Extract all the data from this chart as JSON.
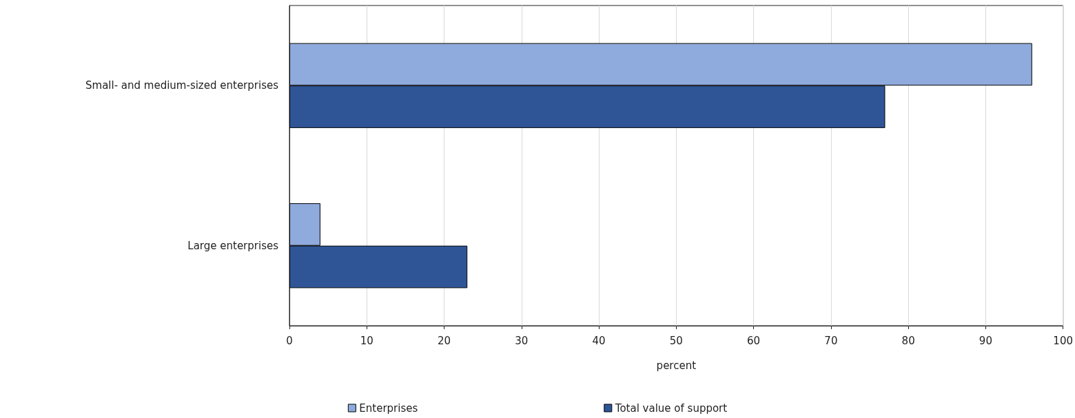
{
  "chart_data": {
    "type": "bar",
    "orientation": "horizontal",
    "categories": [
      "Small- and medium-sized enterprises",
      "Large enterprises"
    ],
    "series": [
      {
        "name": "Enterprises",
        "color": "#8faadc",
        "values": [
          96,
          4
        ]
      },
      {
        "name": "Total value of support",
        "color": "#2f5597",
        "values": [
          77,
          23
        ]
      }
    ],
    "xlabel": "percent",
    "xlim": [
      0,
      100
    ],
    "xticks": [
      0,
      10,
      20,
      30,
      40,
      50,
      60,
      70,
      80,
      90,
      100
    ],
    "grid": "x",
    "legend": "bottom"
  }
}
